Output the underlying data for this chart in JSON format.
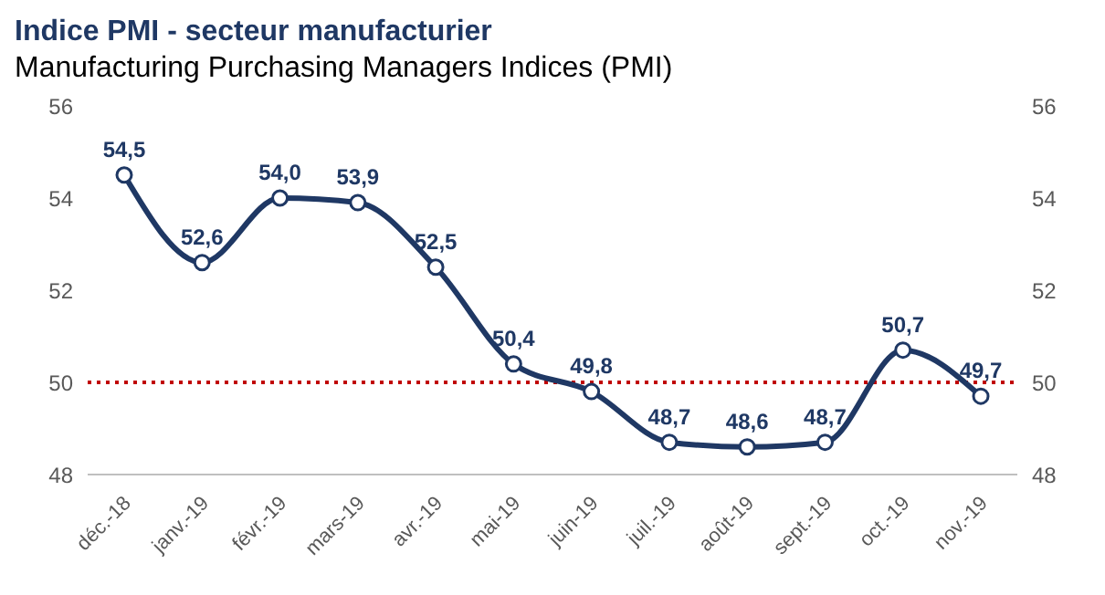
{
  "chart_data": {
    "type": "line",
    "title": "Indice PMI - secteur manufacturier",
    "subtitle": "Manufacturing Purchasing Managers Indices (PMI)",
    "categories": [
      "déc.-18",
      "janv.-19",
      "févr.-19",
      "mars-19",
      "avr.-19",
      "mai-19",
      "juin-19",
      "juil.-19",
      "août-19",
      "sept.-19",
      "oct.-19",
      "nov.-19"
    ],
    "values": [
      54.5,
      52.6,
      54.0,
      53.9,
      52.5,
      50.4,
      49.8,
      48.7,
      48.6,
      48.7,
      50.7,
      49.7
    ],
    "value_labels": [
      "54,5",
      "52,6",
      "54,0",
      "53,9",
      "52,5",
      "50,4",
      "49,8",
      "48,7",
      "48,6",
      "48,7",
      "50,7",
      "49,7"
    ],
    "color": "#1f3864",
    "marker": "circle",
    "line_style": "solid",
    "ylim": [
      48,
      56
    ],
    "yticks": [
      48,
      50,
      52,
      54,
      56
    ],
    "y2lim": [
      48,
      56
    ],
    "y2ticks": [
      48,
      50,
      52,
      54,
      56
    ],
    "ref_lines": [
      {
        "axis": "y",
        "value": 50,
        "color": "#c00000",
        "line_style": "dotted"
      }
    ],
    "grid": false
  }
}
